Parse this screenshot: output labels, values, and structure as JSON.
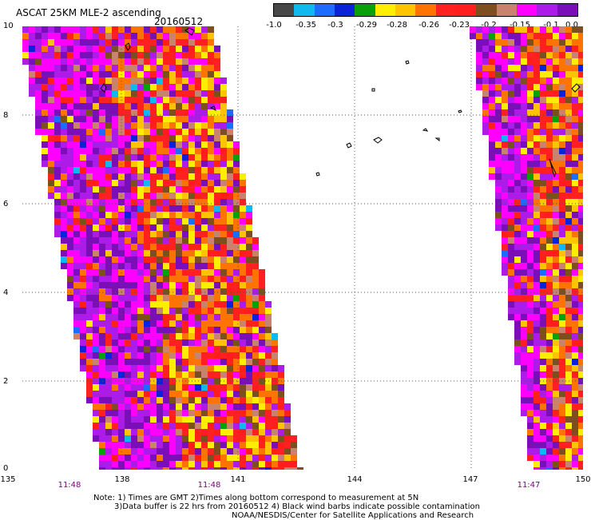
{
  "header": {
    "title": "ASCAT 25KM MLE-2 ascending",
    "date": "20160512"
  },
  "colorbar": {
    "colors": [
      "#474747",
      "#0fb8ef",
      "#1e6cff",
      "#0a23d8",
      "#0aa00a",
      "#ffee00",
      "#ffc300",
      "#ff7300",
      "#ff2020",
      "#ff1d1d",
      "#7d4e1e",
      "#c8826e",
      "#ff00ff",
      "#ad1be8",
      "#7a0fb8"
    ],
    "ticks": [
      "-1.0",
      "-0.35",
      "-0.3",
      "-0.29",
      "-0.28",
      "-0.26",
      "-0.23",
      "-0.2",
      "-0.15",
      "-0.1",
      "0.0"
    ]
  },
  "map": {
    "x_ticks": [
      "135",
      "138",
      "141",
      "144",
      "147",
      "150"
    ],
    "y_ticks": [
      "0",
      "2",
      "4",
      "6",
      "8",
      "10"
    ],
    "times": [
      "11:48",
      "11:48",
      "11:47"
    ]
  },
  "notes": {
    "line1": "Note: 1) Times are GMT 2)Times along bottom correspond to measurement at 5N",
    "line2": "3)Data buffer is 22 hrs from 20160512 4) Black wind barbs indicate possible contamination",
    "line3": "NOAA/NESDIS/Center for Satellite Applications and Research"
  }
}
